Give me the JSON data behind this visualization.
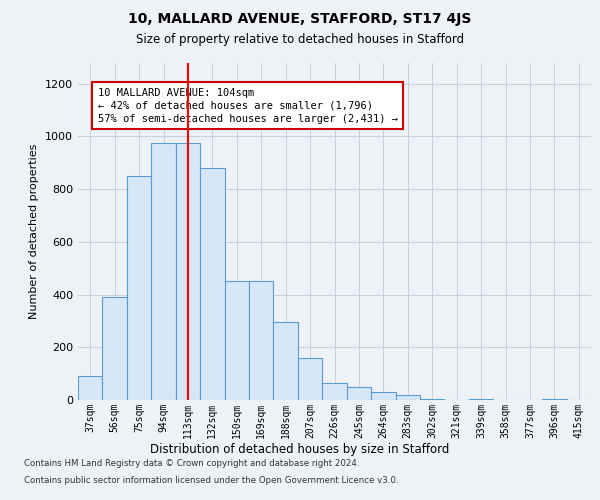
{
  "title": "10, MALLARD AVENUE, STAFFORD, ST17 4JS",
  "subtitle": "Size of property relative to detached houses in Stafford",
  "xlabel": "Distribution of detached houses by size in Stafford",
  "ylabel": "Number of detached properties",
  "categories": [
    "37sqm",
    "56sqm",
    "75sqm",
    "94sqm",
    "113sqm",
    "132sqm",
    "150sqm",
    "169sqm",
    "188sqm",
    "207sqm",
    "226sqm",
    "245sqm",
    "264sqm",
    "283sqm",
    "302sqm",
    "321sqm",
    "339sqm",
    "358sqm",
    "377sqm",
    "396sqm",
    "415sqm"
  ],
  "values": [
    90,
    390,
    850,
    975,
    975,
    880,
    450,
    450,
    295,
    160,
    65,
    50,
    30,
    20,
    5,
    0,
    5,
    0,
    0,
    5,
    0
  ],
  "bar_color": "#d6e8f7",
  "bar_edge_color": "#5b9bd5",
  "vline_x": 4,
  "vline_color": "red",
  "annotation_text": "10 MALLARD AVENUE: 104sqm\n← 42% of detached houses are smaller (1,796)\n57% of semi-detached houses are larger (2,431) →",
  "annotation_box_color": "white",
  "annotation_box_edge_color": "#cc0000",
  "ylim": [
    0,
    1280
  ],
  "yticks": [
    0,
    200,
    400,
    600,
    800,
    1000,
    1200
  ],
  "footer_line1": "Contains HM Land Registry data © Crown copyright and database right 2024.",
  "footer_line2": "Contains public sector information licensed under the Open Government Licence v3.0.",
  "background_color": "#eef2f7",
  "plot_background_color": "#eef2f7",
  "grid_color": "#c8cfe0"
}
